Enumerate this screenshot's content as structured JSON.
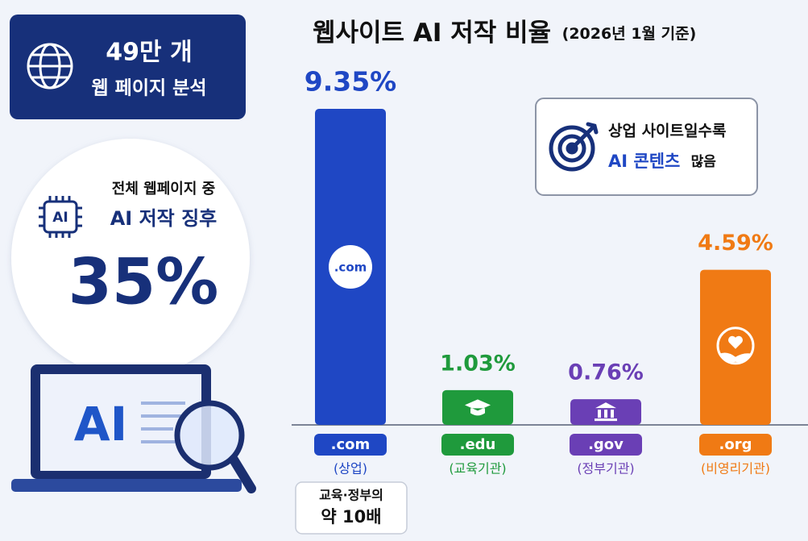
{
  "summary": {
    "pages": "49만 개",
    "pages_note": "웹 페이지 분석",
    "share_intro": "전체 웹페이지 중",
    "share_label": "AI 저작 징후",
    "share": "35%",
    "laptop_text": "AI"
  },
  "callout": {
    "line1": "상업 사이트일수록",
    "highlight": "AI 콘텐츠",
    "rest": "많음"
  },
  "comparison": {
    "line1": "교육·정부의",
    "line2": "약 10배"
  },
  "chart_data": {
    "type": "bar",
    "title": "웹사이트 AI 저작 비율",
    "subtitle": "(2026년 1월 기준)",
    "categories": [
      ".com",
      ".edu",
      ".gov",
      ".org"
    ],
    "descriptions": [
      "(상업)",
      "(교육기관)",
      "(정부기관)",
      "(비영리기관)"
    ],
    "values": [
      9.35,
      1.03,
      0.76,
      4.59
    ],
    "value_labels": [
      "9.35%",
      "1.03%",
      "0.76%",
      "4.59%"
    ],
    "colors": [
      "#1f47c4",
      "#1f9a3c",
      "#6a3fb5",
      "#f07a14"
    ]
  }
}
